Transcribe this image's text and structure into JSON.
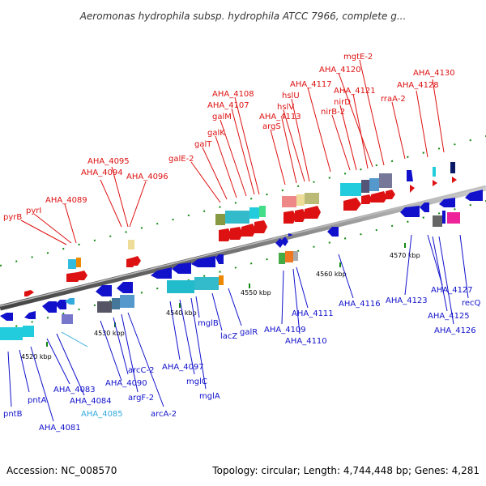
{
  "title": "Aeromonas hydrophila subsp. hydrophila ATCC 7966, complete g...",
  "footer": {
    "accession": "Accession: NC_008570",
    "topology": "Topology: circular; Length: 4,744,448 bp; Genes: 4,281"
  },
  "colors": {
    "forward": "#dd1111",
    "reverse": "#1111cc",
    "highlight": "#33aadd",
    "backbone": "#888888",
    "tick": "#118811"
  },
  "positions": [
    "4520 kbp",
    "4530 kbp",
    "4540 kbp",
    "4550 kbp",
    "4560 kbp",
    "4570 kbp"
  ],
  "top_labels": [
    "pyrB",
    "pyrI",
    "AHA_4089",
    "AHA_4094",
    "AHA_4095",
    "AHA_4096",
    "galE-2",
    "galT",
    "galK",
    "galM",
    "AHA_4107",
    "AHA_4108",
    "argS",
    "AHA_4113",
    "hslV",
    "hslU",
    "AHA_4117",
    "nirB-2",
    "nirD",
    "AHA_4121",
    "AHA_4120",
    "mgtE-2",
    "rraA-2",
    "AHA_4128",
    "AHA_4130"
  ],
  "bottom_labels": [
    "pntB",
    "pntA",
    "AHA_4081",
    "AHA_4083",
    "AHA_4084",
    "AHA_4085",
    "arcC-2",
    "AHA_4090",
    "argF-2",
    "arcA-2",
    "AHA_4097",
    "mglC",
    "mglA",
    "mglB",
    "lacZ",
    "galR",
    "AHA_4109",
    "AHA_4110",
    "AHA_4111",
    "AHA_4116",
    "AHA_4123",
    "AHA_4127",
    "AHA_4125",
    "AHA_4126",
    "recQ"
  ]
}
